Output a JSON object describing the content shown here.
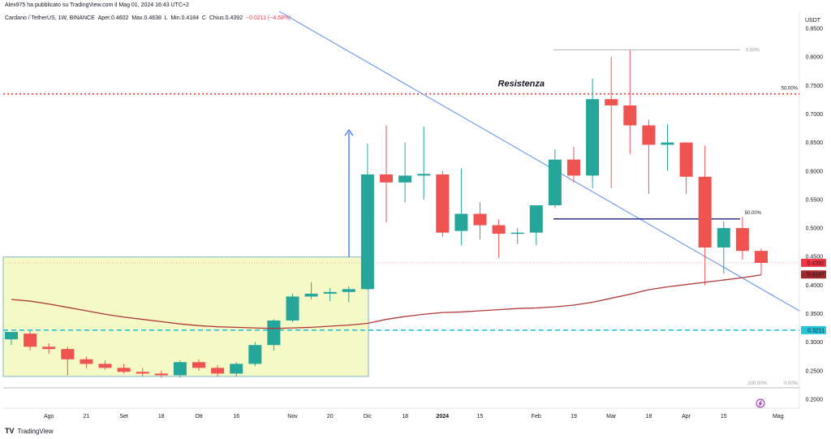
{
  "header": {
    "publisher": "Alex975 ha pubblicato su TradingView.com il Mag 01, 2024 16:43 UTC+2",
    "symbol": "Cardano / TetherUS, 1W, BINANCE",
    "open_label": "Aper.",
    "open": "0.4602",
    "high_label": "Max.",
    "high": "0.4638",
    "low_label": "L",
    "min_label": "Min.",
    "low": "0.4184",
    "close_label": "C",
    "chius_label": "Chius.",
    "close": "0.4392",
    "change": "−0.0211 (−4.58%)"
  },
  "currency": "USDT",
  "footer": {
    "brand": "TradingView",
    "logo": "TV"
  },
  "colors": {
    "up": "#26a69a",
    "down": "#ef5350",
    "trendline": "#5b8def",
    "ma": "#b2373a",
    "support": "#26c6da",
    "resistance": "#e53935",
    "box_fill": "#f4f9c6",
    "box_stroke": "#7fb3c4"
  },
  "chart_data": {
    "type": "candlestick",
    "y_axis": {
      "ticks": [
        "0.8500",
        "0.8000",
        "0.7500",
        "0.7000",
        "0.6500",
        "0.6000",
        "0.5500",
        "0.5000",
        "0.4500",
        "0.4000",
        "0.3500",
        "0.3000",
        "0.2500",
        "0.2000"
      ]
    },
    "x_axis": {
      "ticks": [
        "Ago",
        "21",
        "Set",
        "18",
        "Ott",
        "16",
        "Nov",
        "20",
        "Dic",
        "18",
        "2024",
        "15",
        "Feb",
        "19",
        "Mar",
        "18",
        "Apr",
        "15",
        "Mag"
      ]
    },
    "candles": [
      {
        "o": 0.305,
        "h": 0.315,
        "l": 0.295,
        "c": 0.318
      },
      {
        "o": 0.315,
        "h": 0.32,
        "l": 0.285,
        "c": 0.292
      },
      {
        "o": 0.292,
        "h": 0.298,
        "l": 0.28,
        "c": 0.288
      },
      {
        "o": 0.288,
        "h": 0.292,
        "l": 0.242,
        "c": 0.27
      },
      {
        "o": 0.27,
        "h": 0.275,
        "l": 0.255,
        "c": 0.262
      },
      {
        "o": 0.262,
        "h": 0.268,
        "l": 0.252,
        "c": 0.255
      },
      {
        "o": 0.255,
        "h": 0.262,
        "l": 0.245,
        "c": 0.248
      },
      {
        "o": 0.248,
        "h": 0.255,
        "l": 0.24,
        "c": 0.245
      },
      {
        "o": 0.245,
        "h": 0.25,
        "l": 0.238,
        "c": 0.242
      },
      {
        "o": 0.242,
        "h": 0.268,
        "l": 0.238,
        "c": 0.265
      },
      {
        "o": 0.265,
        "h": 0.27,
        "l": 0.25,
        "c": 0.255
      },
      {
        "o": 0.255,
        "h": 0.26,
        "l": 0.24,
        "c": 0.245
      },
      {
        "o": 0.245,
        "h": 0.265,
        "l": 0.24,
        "c": 0.262
      },
      {
        "o": 0.262,
        "h": 0.3,
        "l": 0.258,
        "c": 0.295
      },
      {
        "o": 0.295,
        "h": 0.34,
        "l": 0.285,
        "c": 0.338
      },
      {
        "o": 0.338,
        "h": 0.385,
        "l": 0.335,
        "c": 0.38
      },
      {
        "o": 0.38,
        "h": 0.405,
        "l": 0.375,
        "c": 0.385
      },
      {
        "o": 0.385,
        "h": 0.395,
        "l": 0.372,
        "c": 0.388
      },
      {
        "o": 0.388,
        "h": 0.398,
        "l": 0.37,
        "c": 0.393
      },
      {
        "o": 0.393,
        "h": 0.648,
        "l": 0.392,
        "c": 0.594
      },
      {
        "o": 0.594,
        "h": 0.68,
        "l": 0.51,
        "c": 0.58
      },
      {
        "o": 0.58,
        "h": 0.65,
        "l": 0.545,
        "c": 0.592
      },
      {
        "o": 0.592,
        "h": 0.678,
        "l": 0.55,
        "c": 0.595
      },
      {
        "o": 0.594,
        "h": 0.6,
        "l": 0.485,
        "c": 0.492
      },
      {
        "o": 0.495,
        "h": 0.605,
        "l": 0.47,
        "c": 0.525
      },
      {
        "o": 0.525,
        "h": 0.545,
        "l": 0.48,
        "c": 0.505
      },
      {
        "o": 0.505,
        "h": 0.515,
        "l": 0.448,
        "c": 0.49
      },
      {
        "o": 0.49,
        "h": 0.5,
        "l": 0.472,
        "c": 0.492
      },
      {
        "o": 0.492,
        "h": 0.54,
        "l": 0.47,
        "c": 0.54
      },
      {
        "o": 0.54,
        "h": 0.638,
        "l": 0.535,
        "c": 0.62
      },
      {
        "o": 0.62,
        "h": 0.643,
        "l": 0.58,
        "c": 0.592
      },
      {
        "o": 0.592,
        "h": 0.762,
        "l": 0.57,
        "c": 0.726
      },
      {
        "o": 0.726,
        "h": 0.8,
        "l": 0.57,
        "c": 0.715
      },
      {
        "o": 0.715,
        "h": 0.812,
        "l": 0.63,
        "c": 0.68
      },
      {
        "o": 0.68,
        "h": 0.69,
        "l": 0.56,
        "c": 0.646
      },
      {
        "o": 0.646,
        "h": 0.682,
        "l": 0.6,
        "c": 0.65
      },
      {
        "o": 0.65,
        "h": 0.65,
        "l": 0.56,
        "c": 0.59
      },
      {
        "o": 0.59,
        "h": 0.645,
        "l": 0.4,
        "c": 0.466
      },
      {
        "o": 0.466,
        "h": 0.512,
        "l": 0.42,
        "c": 0.5
      },
      {
        "o": 0.5,
        "h": 0.52,
        "l": 0.445,
        "c": 0.46
      },
      {
        "o": 0.46,
        "h": 0.464,
        "l": 0.418,
        "c": 0.439
      }
    ],
    "moving_average": [
      0.375,
      0.372,
      0.367,
      0.361,
      0.355,
      0.349,
      0.344,
      0.34,
      0.336,
      0.332,
      0.329,
      0.327,
      0.326,
      0.325,
      0.324,
      0.325,
      0.326,
      0.328,
      0.33,
      0.333,
      0.34,
      0.345,
      0.349,
      0.352,
      0.353,
      0.355,
      0.357,
      0.359,
      0.36,
      0.362,
      0.365,
      0.37,
      0.377,
      0.384,
      0.392,
      0.397,
      0.401,
      0.405,
      0.409,
      0.413,
      0.418
    ],
    "annotations": {
      "resistance_label": "Resistenza",
      "resistance_level": 0.7353,
      "support_level": 0.3211,
      "support_tag": "0.3211",
      "last_price_tag": "0.4392",
      "ma_tag": "0.4187",
      "fib_top_label": "0.00%",
      "fib_mid_label": "50.00%",
      "fib_bottom_label": "100.00%",
      "fib_bottom_right_label": "0.00%",
      "fib2_mid_label": "50.00%",
      "horizontal_level": 0.516
    }
  }
}
